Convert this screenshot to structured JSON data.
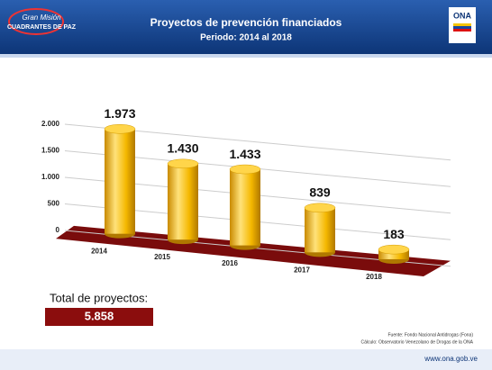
{
  "header": {
    "logo_left": [
      "Gran Misión",
      "CUADRANTES DE PAZ"
    ],
    "logo_right": "ONA"
  },
  "chart_data": {
    "type": "bar3d",
    "title": "Proyectos de prevención financiados",
    "subtitle": "Periodo: 2014 al 2018",
    "categories": [
      "2014",
      "2015",
      "2016",
      "2017",
      "2018"
    ],
    "values": [
      1973,
      1430,
      1433,
      839,
      183
    ],
    "value_labels": [
      "1.973",
      "1.430",
      "1.433",
      "839",
      "183"
    ],
    "color": "#f5b800",
    "floor_color": "#7a0c0c",
    "ylim": [
      0,
      2000
    ],
    "yticks": [
      0,
      500,
      {
        "value": 1000,
        "label": "1.000"
      },
      {
        "value": 1500,
        "label": "1.500"
      },
      {
        "value": 2000,
        "label": "2.000"
      }
    ],
    "grid": true
  },
  "total": {
    "label": "Total de proyectos:",
    "value": 5858,
    "value_label": "5.858"
  },
  "source": [
    "Fuente: Fondo Nacional Antidrogas (Fona)",
    "Cálculo: Observatorio Venezolano de Drogas de la ONA"
  ],
  "footer": "www.ona.gob.ve"
}
